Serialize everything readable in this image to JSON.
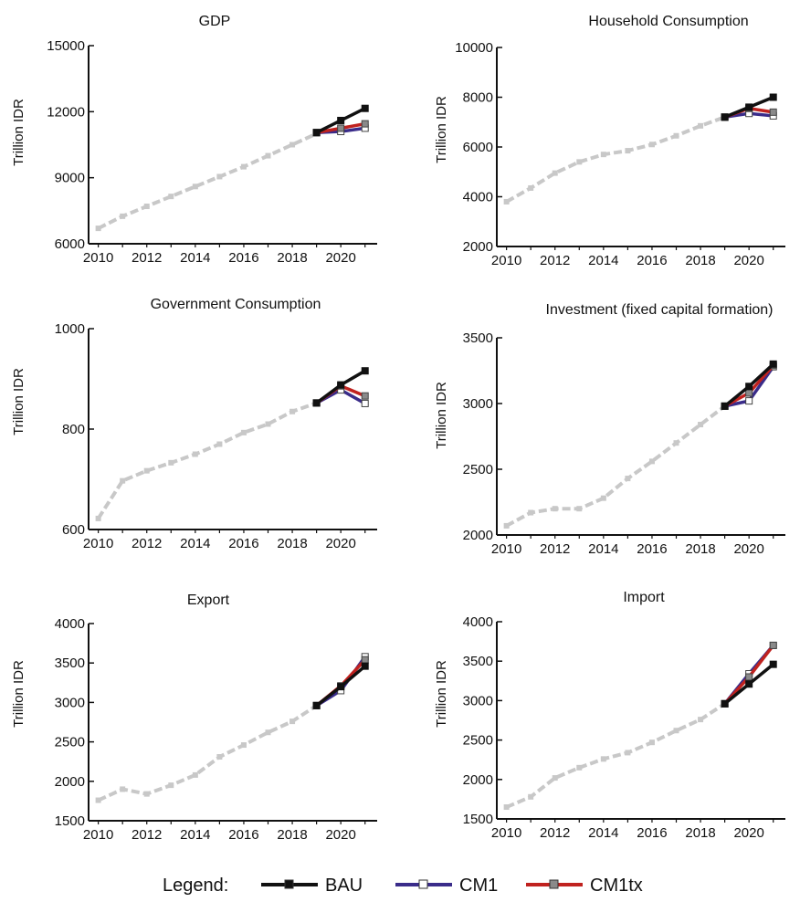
{
  "legend": {
    "title": "Legend:",
    "entries": [
      {
        "name": "BAU",
        "color": "#111111",
        "marker_fill": "#111111"
      },
      {
        "name": "CM1",
        "color": "#3a2c8a",
        "marker_fill": "#ffffff"
      },
      {
        "name": "CM1tx",
        "color": "#c0221f",
        "marker_fill": "#8a8a8a"
      }
    ]
  },
  "colors": {
    "history": "#c8c8c8",
    "axis": "#111111"
  },
  "chart_data": [
    {
      "type": "line",
      "title": "GDP",
      "ylabel": "Trillion IDR",
      "ylim": [
        6000,
        15000
      ],
      "yticks": [
        6000,
        9000,
        12000,
        15000
      ],
      "xticks": [
        2010,
        2012,
        2014,
        2016,
        2018,
        2020
      ],
      "history": {
        "x": [
          2010,
          2011,
          2012,
          2013,
          2014,
          2015,
          2016,
          2017,
          2018,
          2019
        ],
        "y": [
          6700,
          7250,
          7700,
          8150,
          8600,
          9050,
          9500,
          10000,
          10500,
          11000
        ]
      },
      "series": [
        {
          "name": "BAU",
          "x": [
            2019,
            2020,
            2021
          ],
          "y": [
            11050,
            11600,
            12150
          ]
        },
        {
          "name": "CM1",
          "x": [
            2019,
            2020,
            2021
          ],
          "y": [
            11050,
            11100,
            11250
          ]
        },
        {
          "name": "CM1tx",
          "x": [
            2019,
            2020,
            2021
          ],
          "y": [
            11050,
            11250,
            11450
          ]
        }
      ]
    },
    {
      "type": "line",
      "title": "Household Consumption",
      "ylabel": "Trillion IDR",
      "ylim": [
        2000,
        10000
      ],
      "yticks": [
        2000,
        4000,
        6000,
        8000,
        10000
      ],
      "xticks": [
        2010,
        2012,
        2014,
        2016,
        2018,
        2020
      ],
      "history": {
        "x": [
          2010,
          2011,
          2012,
          2013,
          2014,
          2015,
          2016,
          2017,
          2018,
          2019
        ],
        "y": [
          3800,
          4350,
          4950,
          5400,
          5700,
          5850,
          6100,
          6450,
          6850,
          7200
        ]
      },
      "series": [
        {
          "name": "BAU",
          "x": [
            2019,
            2020,
            2021
          ],
          "y": [
            7200,
            7600,
            8000
          ]
        },
        {
          "name": "CM1",
          "x": [
            2019,
            2020,
            2021
          ],
          "y": [
            7200,
            7350,
            7250
          ]
        },
        {
          "name": "CM1tx",
          "x": [
            2019,
            2020,
            2021
          ],
          "y": [
            7200,
            7550,
            7400
          ]
        }
      ]
    },
    {
      "type": "line",
      "title": "Government Consumption",
      "ylabel": "Trillion IDR",
      "ylim": [
        600,
        1000
      ],
      "yticks": [
        600,
        800,
        1000
      ],
      "xticks": [
        2010,
        2012,
        2014,
        2016,
        2018,
        2020
      ],
      "history": {
        "x": [
          2010,
          2011,
          2012,
          2013,
          2014,
          2015,
          2016,
          2017,
          2018,
          2019
        ],
        "y": [
          622,
          697,
          717,
          733,
          750,
          770,
          793,
          810,
          835,
          852
        ]
      },
      "series": [
        {
          "name": "BAU",
          "x": [
            2019,
            2020,
            2021
          ],
          "y": [
            852,
            888,
            916
          ]
        },
        {
          "name": "CM1",
          "x": [
            2019,
            2020,
            2021
          ],
          "y": [
            852,
            878,
            851
          ]
        },
        {
          "name": "CM1tx",
          "x": [
            2019,
            2020,
            2021
          ],
          "y": [
            852,
            886,
            866
          ]
        }
      ]
    },
    {
      "type": "line",
      "title": "Investment (fixed capital formation)",
      "ylabel": "Trillion IDR",
      "ylim": [
        2000,
        3500
      ],
      "yticks": [
        2000,
        2500,
        3000,
        3500
      ],
      "xticks": [
        2010,
        2012,
        2014,
        2016,
        2018,
        2020
      ],
      "history": {
        "x": [
          2010,
          2011,
          2012,
          2013,
          2014,
          2015,
          2016,
          2017,
          2018,
          2019
        ],
        "y": [
          2070,
          2170,
          2200,
          2200,
          2280,
          2430,
          2560,
          2700,
          2840,
          2980
        ]
      },
      "series": [
        {
          "name": "BAU",
          "x": [
            2019,
            2020,
            2021
          ],
          "y": [
            2980,
            3130,
            3300
          ]
        },
        {
          "name": "CM1",
          "x": [
            2019,
            2020,
            2021
          ],
          "y": [
            2980,
            3020,
            3280
          ]
        },
        {
          "name": "CM1tx",
          "x": [
            2019,
            2020,
            2021
          ],
          "y": [
            2980,
            3080,
            3290
          ]
        }
      ]
    },
    {
      "type": "line",
      "title": "Export",
      "ylabel": "Trillion IDR",
      "ylim": [
        1500,
        4000
      ],
      "yticks": [
        1500,
        2000,
        2500,
        3000,
        3500,
        4000
      ],
      "xticks": [
        2010,
        2012,
        2014,
        2016,
        2018,
        2020
      ],
      "history": {
        "x": [
          2010,
          2011,
          2012,
          2013,
          2014,
          2015,
          2016,
          2017,
          2018,
          2019
        ],
        "y": [
          1760,
          1900,
          1840,
          1950,
          2080,
          2310,
          2460,
          2620,
          2760,
          2960
        ]
      },
      "series": [
        {
          "name": "BAU",
          "x": [
            2019,
            2020,
            2021
          ],
          "y": [
            2960,
            3200,
            3460
          ]
        },
        {
          "name": "CM1",
          "x": [
            2019,
            2020,
            2021
          ],
          "y": [
            2960,
            3150,
            3580
          ]
        },
        {
          "name": "CM1tx",
          "x": [
            2019,
            2020,
            2021
          ],
          "y": [
            2960,
            3210,
            3540
          ]
        }
      ]
    },
    {
      "type": "line",
      "title": "Import",
      "ylabel": "Trillion IDR",
      "ylim": [
        1500,
        4000
      ],
      "yticks": [
        1500,
        2000,
        2500,
        3000,
        3500,
        4000
      ],
      "xticks": [
        2010,
        2012,
        2014,
        2016,
        2018,
        2020
      ],
      "history": {
        "x": [
          2010,
          2011,
          2012,
          2013,
          2014,
          2015,
          2016,
          2017,
          2018,
          2019
        ],
        "y": [
          1650,
          1780,
          2020,
          2150,
          2260,
          2340,
          2470,
          2620,
          2760,
          2960
        ]
      },
      "series": [
        {
          "name": "BAU",
          "x": [
            2019,
            2020,
            2021
          ],
          "y": [
            2960,
            3210,
            3460
          ]
        },
        {
          "name": "CM1",
          "x": [
            2019,
            2020,
            2021
          ],
          "y": [
            2960,
            3340,
            3700
          ]
        },
        {
          "name": "CM1tx",
          "x": [
            2019,
            2020,
            2021
          ],
          "y": [
            2960,
            3300,
            3700
          ]
        }
      ]
    }
  ]
}
